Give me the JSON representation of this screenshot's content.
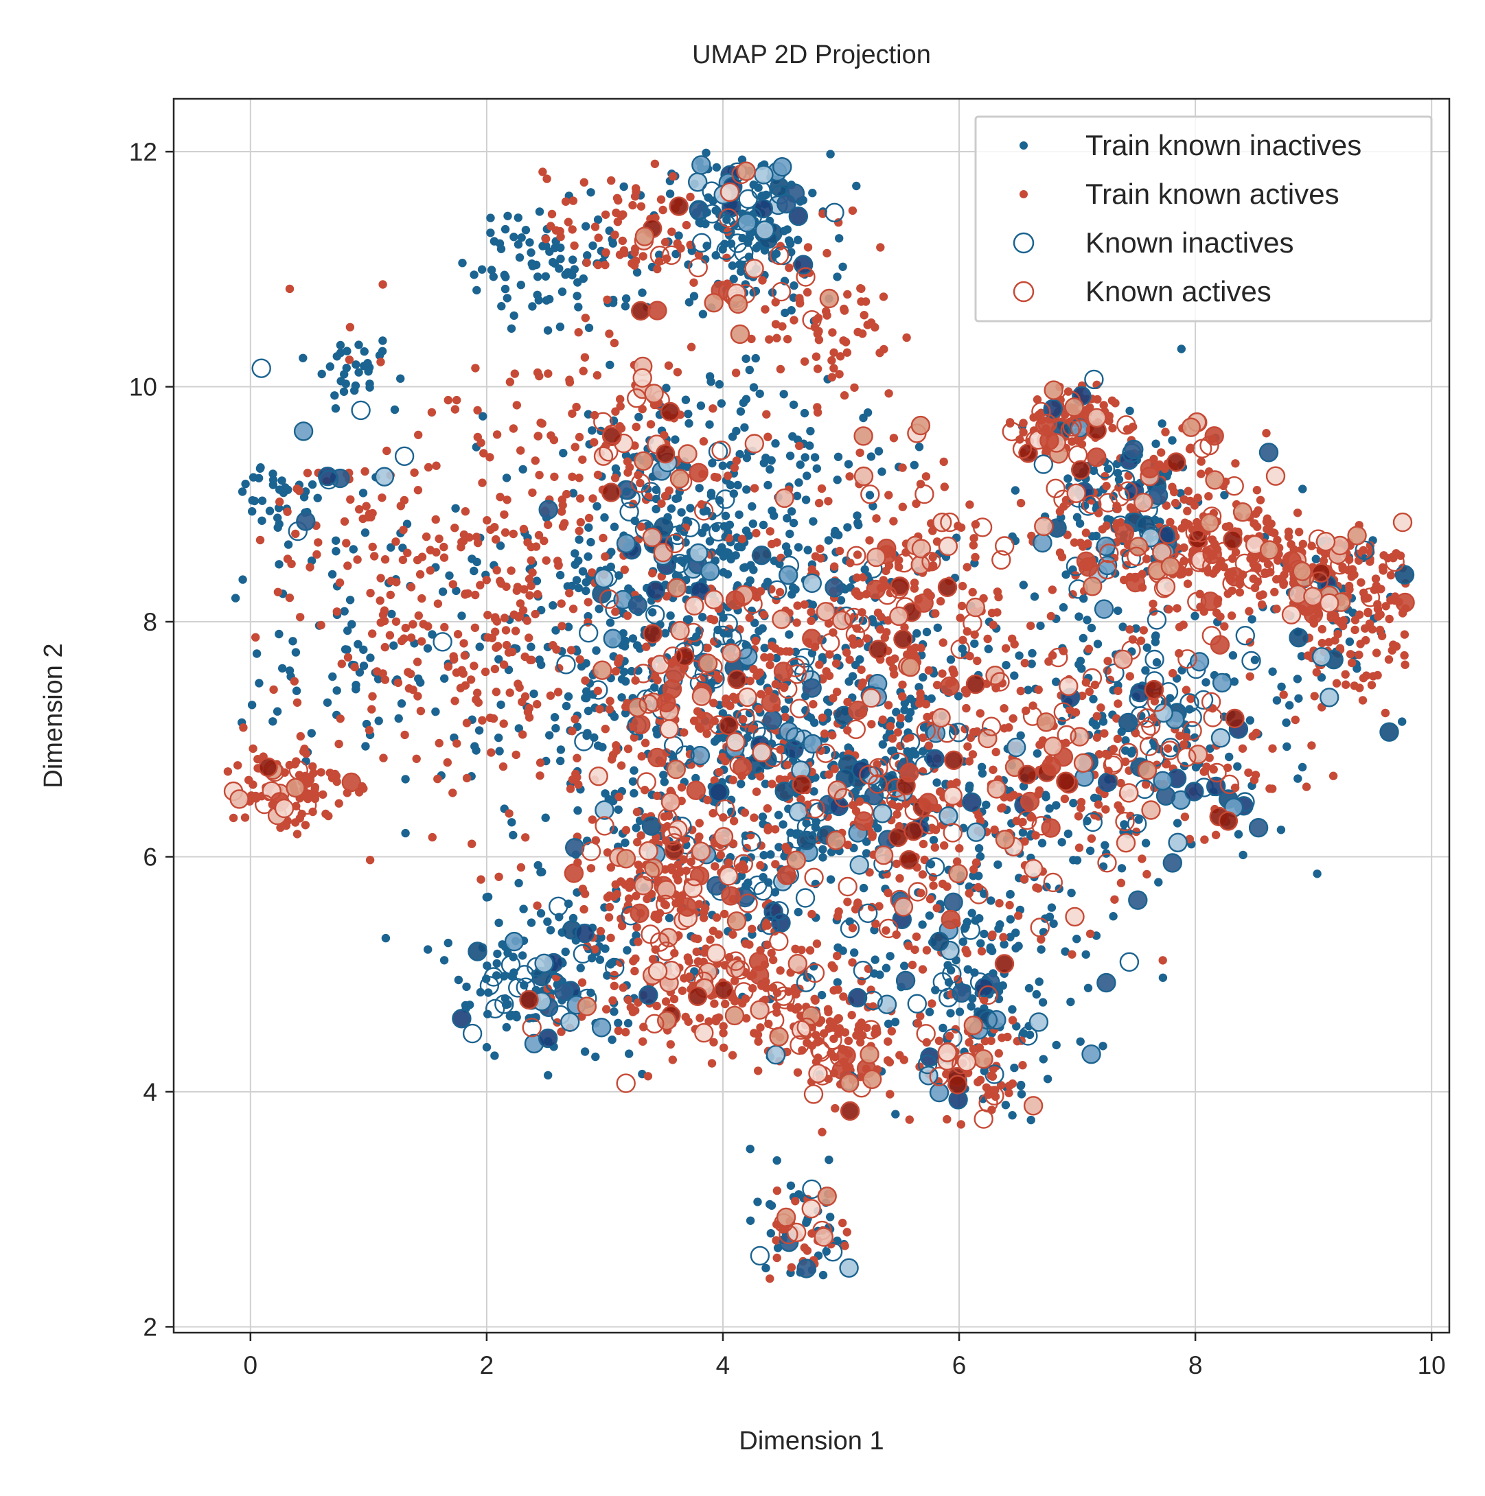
{
  "chart_data": {
    "type": "scatter",
    "title": "UMAP 2D Projection",
    "xlabel": "Dimension 1",
    "ylabel": "Dimension 2",
    "xlim": [
      -0.65,
      10.15
    ],
    "ylim": [
      1.95,
      12.45
    ],
    "xticks": [
      0,
      2,
      4,
      6,
      8,
      10
    ],
    "yticks": [
      2,
      4,
      6,
      8,
      10,
      12
    ],
    "grid": true,
    "legend_position": "top-right",
    "colors": {
      "inactive": "#1b6390",
      "active": "#c64a36",
      "grid": "#d0d0d0",
      "axes": "#262626"
    },
    "series": [
      {
        "name": "Train known inactives",
        "marker": "small-filled-dot",
        "color": "#1b6390",
        "clusters": [
          {
            "cx": 4.2,
            "cy": 11.3,
            "sx": 0.35,
            "sy": 0.35,
            "n": 140
          },
          {
            "cx": 2.6,
            "cy": 11.1,
            "sx": 0.4,
            "sy": 0.3,
            "n": 90
          },
          {
            "cx": 3.6,
            "cy": 8.6,
            "sx": 0.6,
            "sy": 0.7,
            "n": 260
          },
          {
            "cx": 3.1,
            "cy": 7.2,
            "sx": 0.8,
            "sy": 0.8,
            "n": 200
          },
          {
            "cx": 4.5,
            "cy": 6.5,
            "sx": 0.8,
            "sy": 0.9,
            "n": 230
          },
          {
            "cx": 5.4,
            "cy": 7.3,
            "sx": 0.8,
            "sy": 0.8,
            "n": 180
          },
          {
            "cx": 2.5,
            "cy": 5.0,
            "sx": 0.45,
            "sy": 0.35,
            "n": 110
          },
          {
            "cx": 6.3,
            "cy": 4.8,
            "sx": 0.4,
            "sy": 0.5,
            "n": 100
          },
          {
            "cx": 7.4,
            "cy": 9.0,
            "sx": 0.4,
            "sy": 0.4,
            "n": 90
          },
          {
            "cx": 7.6,
            "cy": 7.1,
            "sx": 0.6,
            "sy": 0.6,
            "n": 130
          },
          {
            "cx": 1.0,
            "cy": 8.0,
            "sx": 0.55,
            "sy": 0.7,
            "n": 90
          },
          {
            "cx": 0.2,
            "cy": 9.1,
            "sx": 0.2,
            "sy": 0.15,
            "n": 30
          },
          {
            "cx": 0.9,
            "cy": 10.1,
            "sx": 0.15,
            "sy": 0.12,
            "n": 30
          },
          {
            "cx": 4.7,
            "cy": 2.8,
            "sx": 0.22,
            "sy": 0.25,
            "n": 35
          },
          {
            "cx": 9.1,
            "cy": 8.1,
            "sx": 0.4,
            "sy": 0.4,
            "n": 50
          },
          {
            "cx": 6.2,
            "cy": 6.1,
            "sx": 0.5,
            "sy": 0.6,
            "n": 90
          },
          {
            "cx": 4.5,
            "cy": 9.2,
            "sx": 0.6,
            "sy": 0.6,
            "n": 80
          }
        ]
      },
      {
        "name": "Train known actives",
        "marker": "small-filled-dot",
        "color": "#c64a36",
        "clusters": [
          {
            "cx": 0.3,
            "cy": 6.6,
            "sx": 0.25,
            "sy": 0.2,
            "n": 80
          },
          {
            "cx": 1.2,
            "cy": 8.3,
            "sx": 0.55,
            "sy": 0.85,
            "n": 140
          },
          {
            "cx": 2.3,
            "cy": 8.0,
            "sx": 0.5,
            "sy": 0.9,
            "n": 180
          },
          {
            "cx": 3.5,
            "cy": 5.8,
            "sx": 0.4,
            "sy": 0.3,
            "n": 120
          },
          {
            "cx": 4.0,
            "cy": 7.2,
            "sx": 0.7,
            "sy": 0.8,
            "n": 230
          },
          {
            "cx": 3.9,
            "cy": 4.9,
            "sx": 0.6,
            "sy": 0.3,
            "n": 160
          },
          {
            "cx": 5.5,
            "cy": 8.2,
            "sx": 0.45,
            "sy": 0.55,
            "n": 150
          },
          {
            "cx": 5.6,
            "cy": 6.2,
            "sx": 0.7,
            "sy": 0.8,
            "n": 210
          },
          {
            "cx": 6.9,
            "cy": 9.7,
            "sx": 0.2,
            "sy": 0.15,
            "n": 80
          },
          {
            "cx": 7.7,
            "cy": 8.8,
            "sx": 0.45,
            "sy": 0.4,
            "n": 170
          },
          {
            "cx": 8.8,
            "cy": 8.5,
            "sx": 0.55,
            "sy": 0.25,
            "n": 170
          },
          {
            "cx": 9.3,
            "cy": 8.0,
            "sx": 0.3,
            "sy": 0.35,
            "n": 120
          },
          {
            "cx": 7.2,
            "cy": 6.9,
            "sx": 0.7,
            "sy": 0.5,
            "n": 150
          },
          {
            "cx": 4.9,
            "cy": 4.4,
            "sx": 0.3,
            "sy": 0.25,
            "n": 80
          },
          {
            "cx": 6.1,
            "cy": 4.3,
            "sx": 0.25,
            "sy": 0.25,
            "n": 60
          },
          {
            "cx": 3.2,
            "cy": 11.3,
            "sx": 0.35,
            "sy": 0.25,
            "n": 70
          },
          {
            "cx": 4.9,
            "cy": 10.6,
            "sx": 0.3,
            "sy": 0.4,
            "n": 70
          },
          {
            "cx": 4.7,
            "cy": 2.8,
            "sx": 0.2,
            "sy": 0.2,
            "n": 30
          },
          {
            "cx": 3.1,
            "cy": 9.6,
            "sx": 0.6,
            "sy": 0.4,
            "n": 90
          }
        ]
      },
      {
        "name": "Known inactives",
        "marker": "large-open-circle",
        "color": "#1b6390",
        "clusters": [
          {
            "cx": 4.2,
            "cy": 11.5,
            "sx": 0.3,
            "sy": 0.25,
            "n": 40
          },
          {
            "cx": 3.5,
            "cy": 8.4,
            "sx": 0.6,
            "sy": 0.6,
            "n": 60
          },
          {
            "cx": 4.4,
            "cy": 6.6,
            "sx": 0.7,
            "sy": 0.8,
            "n": 70
          },
          {
            "cx": 2.5,
            "cy": 4.9,
            "sx": 0.35,
            "sy": 0.3,
            "n": 35
          },
          {
            "cx": 7.3,
            "cy": 8.9,
            "sx": 0.4,
            "sy": 0.45,
            "n": 40
          },
          {
            "cx": 7.7,
            "cy": 7.0,
            "sx": 0.55,
            "sy": 0.5,
            "n": 45
          },
          {
            "cx": 6.1,
            "cy": 4.8,
            "sx": 0.45,
            "sy": 0.5,
            "n": 35
          },
          {
            "cx": 0.8,
            "cy": 9.2,
            "sx": 0.3,
            "sy": 0.3,
            "n": 10
          },
          {
            "cx": 4.7,
            "cy": 2.7,
            "sx": 0.2,
            "sy": 0.2,
            "n": 8
          },
          {
            "cx": 9.2,
            "cy": 7.9,
            "sx": 0.3,
            "sy": 0.3,
            "n": 12
          },
          {
            "cx": 5.3,
            "cy": 6.4,
            "sx": 0.7,
            "sy": 0.7,
            "n": 40
          }
        ]
      },
      {
        "name": "Known actives",
        "marker": "large-open-circle",
        "color": "#c64a36",
        "clusters": [
          {
            "cx": 0.3,
            "cy": 6.5,
            "sx": 0.2,
            "sy": 0.15,
            "n": 15
          },
          {
            "cx": 3.7,
            "cy": 5.8,
            "sx": 0.4,
            "sy": 0.3,
            "n": 30
          },
          {
            "cx": 3.9,
            "cy": 7.4,
            "sx": 0.6,
            "sy": 0.7,
            "n": 70
          },
          {
            "cx": 3.9,
            "cy": 4.9,
            "sx": 0.55,
            "sy": 0.3,
            "n": 40
          },
          {
            "cx": 5.6,
            "cy": 8.3,
            "sx": 0.4,
            "sy": 0.5,
            "n": 45
          },
          {
            "cx": 5.6,
            "cy": 6.3,
            "sx": 0.6,
            "sy": 0.7,
            "n": 55
          },
          {
            "cx": 6.9,
            "cy": 9.6,
            "sx": 0.2,
            "sy": 0.15,
            "n": 25
          },
          {
            "cx": 7.7,
            "cy": 8.7,
            "sx": 0.45,
            "sy": 0.45,
            "n": 50
          },
          {
            "cx": 8.9,
            "cy": 8.5,
            "sx": 0.55,
            "sy": 0.25,
            "n": 40
          },
          {
            "cx": 7.3,
            "cy": 6.9,
            "sx": 0.6,
            "sy": 0.45,
            "n": 45
          },
          {
            "cx": 4.9,
            "cy": 4.3,
            "sx": 0.25,
            "sy": 0.2,
            "n": 20
          },
          {
            "cx": 6.1,
            "cy": 4.2,
            "sx": 0.25,
            "sy": 0.2,
            "n": 15
          },
          {
            "cx": 4.0,
            "cy": 11.1,
            "sx": 0.4,
            "sy": 0.4,
            "n": 30
          },
          {
            "cx": 3.3,
            "cy": 9.6,
            "sx": 0.5,
            "sy": 0.3,
            "n": 25
          },
          {
            "cx": 4.7,
            "cy": 2.8,
            "sx": 0.15,
            "sy": 0.15,
            "n": 8
          }
        ]
      }
    ]
  }
}
